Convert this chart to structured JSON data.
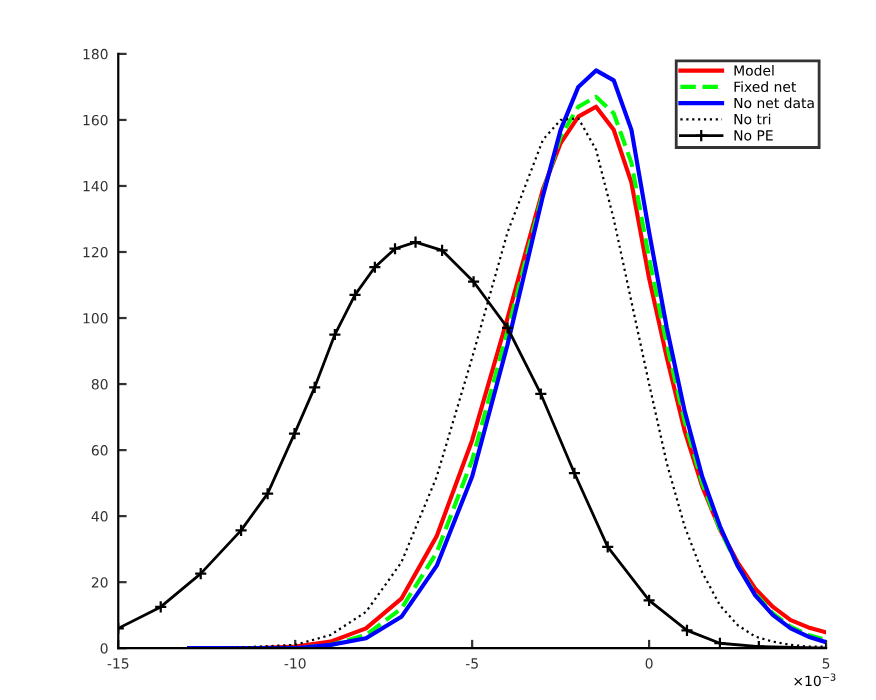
{
  "chart_data": {
    "type": "line",
    "x": [
      -13,
      -12,
      -11,
      -10,
      -9,
      -8,
      -7,
      -6,
      -5,
      -4,
      -3,
      -2.5,
      -2,
      -1.5,
      -1,
      -0.5,
      0,
      0.5,
      1,
      1.5,
      2,
      2.5,
      3,
      3.5,
      4,
      4.5,
      5
    ],
    "series": [
      {
        "name": "Model",
        "color": "#ff0000",
        "line_style": "solid",
        "marker": "none",
        "values": [
          null,
          null,
          0,
          0.5,
          2,
          6,
          15,
          34,
          63,
          100,
          139,
          153,
          161,
          164,
          157,
          141,
          112,
          88,
          66,
          49,
          36,
          26,
          18,
          12.5,
          8.5,
          6.3,
          4.8
        ]
      },
      {
        "name": "Fixed net",
        "color": "#00ff00",
        "line_style": "dashed",
        "marker": "none",
        "values": [
          null,
          null,
          0,
          0,
          1,
          4,
          12,
          29,
          57,
          96,
          138,
          155,
          164,
          167,
          162,
          147,
          118,
          92,
          69,
          50,
          36,
          25,
          16.5,
          10.5,
          6.5,
          4,
          2.5
        ]
      },
      {
        "name": "No net data",
        "color": "#0000ff",
        "line_style": "solid",
        "marker": "none",
        "values": [
          0,
          0,
          0,
          0,
          1,
          3,
          9.5,
          25,
          52,
          92,
          137,
          157,
          170,
          175,
          172,
          157,
          126,
          97,
          72,
          52,
          37,
          25,
          16,
          10,
          6,
          3.5,
          1.8
        ]
      },
      {
        "name": "No tri",
        "color": "#000000",
        "line_style": "dotted",
        "marker": "none",
        "values": [
          0,
          0,
          0.5,
          1,
          4,
          11,
          26,
          52,
          88,
          126,
          154,
          160,
          160.5,
          151,
          130,
          105,
          80,
          56,
          37,
          23,
          13,
          7,
          3.5,
          2,
          1,
          0.5,
          0.5
        ]
      },
      {
        "name": "No PE",
        "color": "#000000",
        "line_style": "solid",
        "marker": "cross",
        "x": [
          -15,
          -13.8,
          -12.67,
          -11.53,
          -10.78,
          -10.02,
          -9.45,
          -8.88,
          -8.31,
          -7.75,
          -7.18,
          -6.6,
          -5.85,
          -4.96,
          -4,
          -3.06,
          -2.11,
          -1.17,
          0,
          1.07,
          2,
          3.1,
          5
        ],
        "values": [
          6,
          12.5,
          22.6,
          35.7,
          46.8,
          65,
          79,
          95,
          107,
          115.4,
          121,
          123,
          120.5,
          111,
          97,
          77,
          53,
          30.7,
          14.5,
          5.4,
          1.5,
          0.5,
          0
        ]
      }
    ],
    "xlim": [
      -15,
      5
    ],
    "xticks": [
      -15,
      -10,
      -5,
      0,
      5
    ],
    "ylim": [
      0,
      180
    ],
    "yticks": [
      0,
      20,
      40,
      60,
      80,
      100,
      120,
      140,
      160,
      180
    ],
    "annotations": [
      "×10$^{−3}$"
    ],
    "legend": "top right",
    "grid": false
  }
}
